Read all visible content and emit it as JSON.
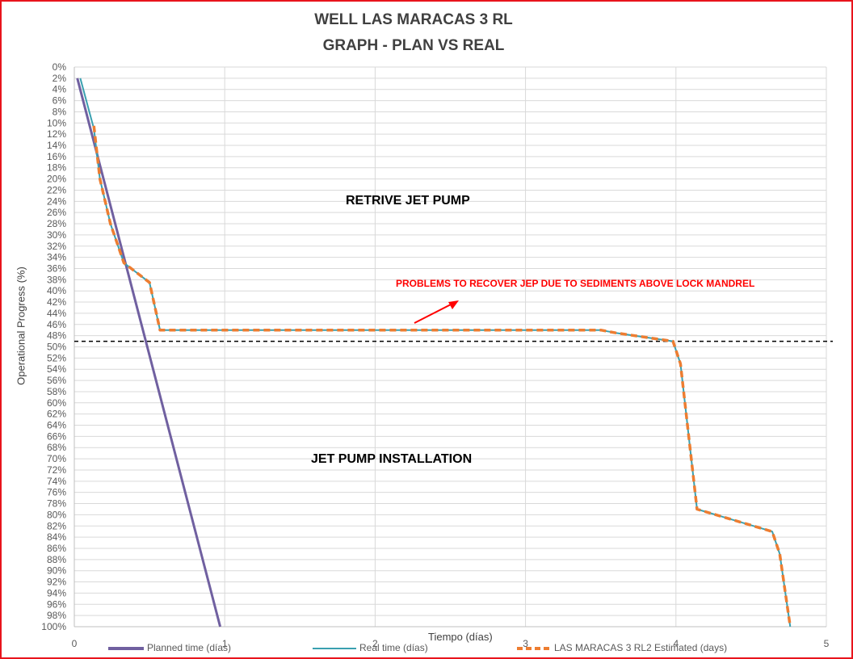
{
  "chart_data": {
    "type": "line",
    "title": "WELL LAS MARACAS 3 RL",
    "subtitle": "GRAPH  - PLAN VS REAL",
    "xlabel": "Tiempo (días)",
    "ylabel": "Operational Progress (%)",
    "xlim": [
      0,
      5
    ],
    "ylim": [
      0,
      100
    ],
    "y_reversed": true,
    "x_ticks": [
      0,
      1,
      2,
      3,
      4,
      5
    ],
    "y_ticks": [
      0,
      2,
      4,
      6,
      8,
      10,
      12,
      14,
      16,
      18,
      20,
      22,
      24,
      26,
      28,
      30,
      32,
      34,
      36,
      38,
      40,
      42,
      44,
      46,
      48,
      50,
      52,
      54,
      56,
      58,
      60,
      62,
      64,
      66,
      68,
      70,
      72,
      74,
      76,
      78,
      80,
      82,
      84,
      86,
      88,
      90,
      92,
      94,
      96,
      98,
      100
    ],
    "y_tick_suffix": "%",
    "grid": true,
    "legend_position": "bottom",
    "reference_line": {
      "y": 49,
      "style": "dashed",
      "color": "#000000"
    },
    "series": [
      {
        "name": "Planned time (días)",
        "color": "#7060a0",
        "style": "solid",
        "points": [
          [
            0.02,
            2
          ],
          [
            0.97,
            100
          ]
        ]
      },
      {
        "name": "Real time (días)",
        "color": "#3aa0b0",
        "style": "solid",
        "points": [
          [
            0.04,
            2
          ],
          [
            0.13,
            11
          ],
          [
            0.17,
            20
          ],
          [
            0.24,
            28
          ],
          [
            0.33,
            35
          ],
          [
            0.5,
            38.5
          ],
          [
            0.57,
            47
          ],
          [
            3.5,
            47
          ],
          [
            3.6,
            47.5
          ],
          [
            3.98,
            49
          ],
          [
            4.03,
            53
          ],
          [
            4.14,
            79
          ],
          [
            4.64,
            83
          ],
          [
            4.69,
            87
          ],
          [
            4.76,
            100
          ]
        ]
      },
      {
        "name": "LAS MARACAS 3 RL2 Estimated (days)",
        "color": "#ed7d31",
        "style": "dashed",
        "points": [
          [
            0.13,
            10.5
          ],
          [
            0.17,
            20
          ],
          [
            0.24,
            28
          ],
          [
            0.33,
            35
          ],
          [
            0.5,
            38.5
          ],
          [
            0.57,
            47
          ],
          [
            3.5,
            47
          ],
          [
            3.6,
            47.5
          ],
          [
            3.98,
            49
          ],
          [
            4.03,
            53
          ],
          [
            4.14,
            79
          ],
          [
            4.64,
            83
          ],
          [
            4.69,
            87
          ],
          [
            4.76,
            100
          ]
        ]
      }
    ],
    "annotations": [
      {
        "text": "RETRIVE JET PUMP",
        "color": "#000000"
      },
      {
        "text": "PROBLEMS TO RECOVER JEP DUE TO SEDIMENTS ABOVE LOCK MANDREL",
        "color": "#ff0000"
      },
      {
        "text": "JET PUMP INSTALLATION",
        "color": "#000000"
      }
    ]
  }
}
